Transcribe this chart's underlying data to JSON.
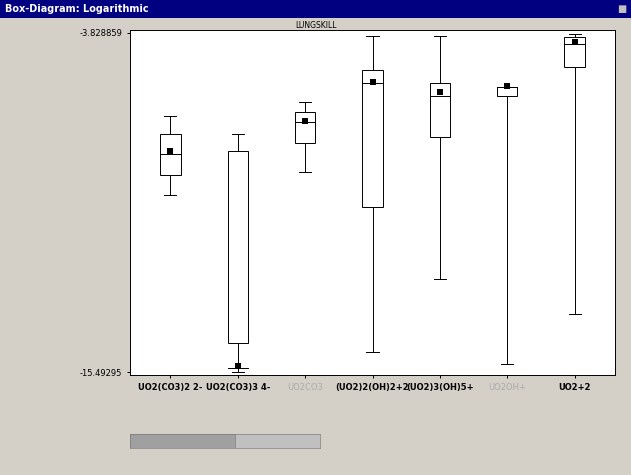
{
  "title": "Box-Diagram: Logarithmic",
  "ymin": -15.49295,
  "ymax": -3.828859,
  "categories": [
    "UO2(CO3)2 2-",
    "UO2(CO3)3 4-",
    "UO2CO3",
    "(UO2)2(OH)2+2",
    "(UO2)3(OH)5+",
    "UO2OH+",
    "UO2+2"
  ],
  "boxes": [
    {
      "label": "UO2(CO3)2 2-",
      "whisker_low": -9.4,
      "q1": -8.7,
      "median": -8.0,
      "q3": -7.3,
      "whisker_high": -6.7,
      "mean": -7.9
    },
    {
      "label": "UO2(CO3)3 4-",
      "whisker_low": -15.49295,
      "q1": -14.5,
      "median": -15.35,
      "q3": -7.9,
      "whisker_high": -7.3,
      "mean": -15.3
    },
    {
      "label": "UO2CO3",
      "whisker_low": -8.6,
      "q1": -7.6,
      "median": -6.9,
      "q3": -6.55,
      "whisker_high": -6.2,
      "mean": -6.85
    },
    {
      "label": "(UO2)2(OH)2+2",
      "whisker_low": -14.8,
      "q1": -9.8,
      "median": -5.55,
      "q3": -5.1,
      "whisker_high": -3.95,
      "mean": -5.5
    },
    {
      "label": "(UO2)3(OH)5+",
      "whisker_low": -12.3,
      "q1": -7.4,
      "median": -6.0,
      "q3": -5.55,
      "whisker_high": -3.95,
      "mean": -5.85
    },
    {
      "label": "UO2OH+",
      "whisker_low": -15.2,
      "q1": -6.0,
      "median": -5.7,
      "q3": -5.7,
      "whisker_high": -5.7,
      "mean": -5.65
    },
    {
      "label": "UO2+2",
      "whisker_low": -13.5,
      "q1": -5.0,
      "median": -4.2,
      "q3": -3.97,
      "whisker_high": -3.85,
      "mean": -4.15
    }
  ],
  "background_color": "#d4d0c8",
  "plot_background": "#ffffff",
  "box_color": "#ffffff",
  "box_edge_color": "#000000",
  "whisker_color": "#000000",
  "mean_marker_color": "#000000",
  "title_bar_color": "#000080",
  "title_text_color": "#ffffff",
  "bold_label_indices": [
    0,
    1,
    3,
    4,
    6
  ],
  "faded_label_indices": [
    2,
    5
  ],
  "subtitle_text": "LUNGSKILL",
  "scrollbar_color": "#c0c0c0",
  "scrollbar_thumb_color": "#a0a0a0"
}
